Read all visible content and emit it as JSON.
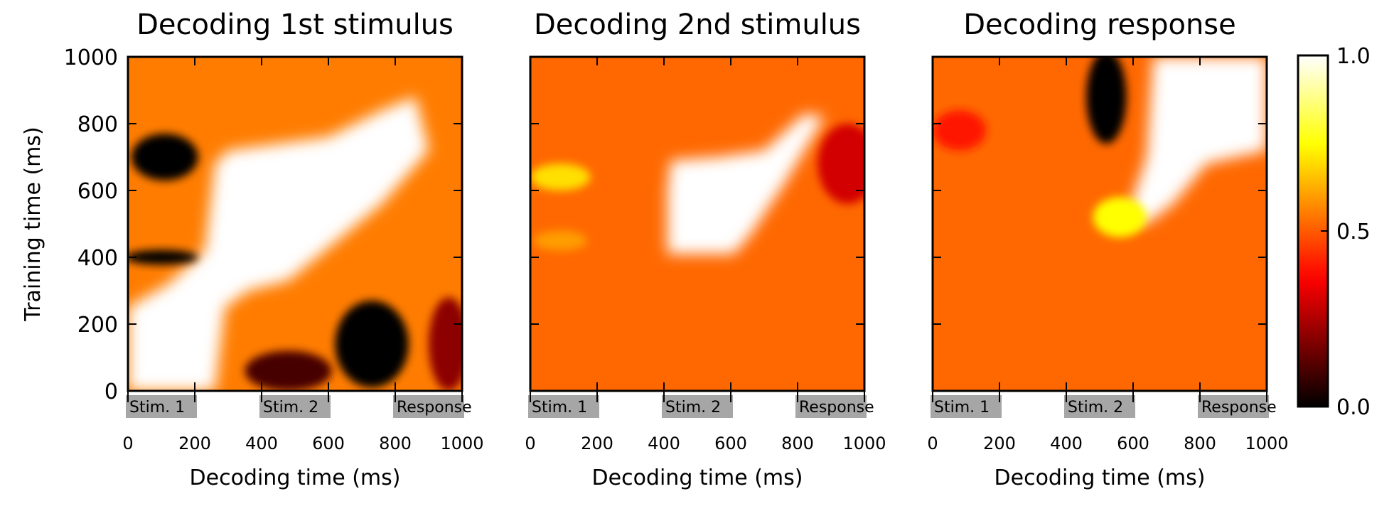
{
  "chart_data": [
    {
      "type": "heatmap",
      "title": "Decoding 1st stimulus",
      "xlabel": "Decoding time (ms)",
      "ylabel": "Training time (ms)",
      "xlim": [
        0,
        1000
      ],
      "ylim": [
        0,
        1000
      ],
      "xticks": [
        "0",
        "200",
        "400",
        "600",
        "800",
        "1000"
      ],
      "yticks": [
        "0",
        "200",
        "400",
        "600",
        "800",
        "1000"
      ],
      "background_value": 0.55,
      "regions": [
        {
          "shape": "poly",
          "value": 1.0,
          "points": [
            [
              0,
              0
            ],
            [
              260,
              0
            ],
            [
              290,
              250
            ],
            [
              360,
              300
            ],
            [
              480,
              330
            ],
            [
              760,
              560
            ],
            [
              900,
              720
            ],
            [
              860,
              880
            ],
            [
              760,
              840
            ],
            [
              600,
              760
            ],
            [
              300,
              720
            ],
            [
              260,
              680
            ],
            [
              230,
              420
            ],
            [
              120,
              320
            ],
            [
              0,
              250
            ]
          ]
        },
        {
          "shape": "blob",
          "value": 0.0,
          "cx": 110,
          "cy": 700,
          "rx": 100,
          "ry": 70
        },
        {
          "shape": "blob",
          "value": 0.0,
          "cx": 100,
          "cy": 400,
          "rx": 110,
          "ry": 22
        },
        {
          "shape": "blob",
          "value": 0.0,
          "cx": 730,
          "cy": 140,
          "rx": 110,
          "ry": 130
        },
        {
          "shape": "blob",
          "value": 0.1,
          "cx": 480,
          "cy": 60,
          "rx": 130,
          "ry": 60
        },
        {
          "shape": "blob",
          "value": 0.2,
          "cx": 960,
          "cy": 140,
          "rx": 60,
          "ry": 140
        }
      ]
    },
    {
      "type": "heatmap",
      "title": "Decoding 2nd stimulus",
      "xlabel": "Decoding time (ms)",
      "xlim": [
        0,
        1000
      ],
      "ylim": [
        0,
        1000
      ],
      "xticks": [
        "0",
        "200",
        "400",
        "600",
        "800",
        "1000"
      ],
      "background_value": 0.52,
      "regions": [
        {
          "shape": "poly",
          "value": 1.0,
          "points": [
            [
              410,
              410
            ],
            [
              610,
              410
            ],
            [
              660,
              470
            ],
            [
              760,
              620
            ],
            [
              880,
              820
            ],
            [
              820,
              830
            ],
            [
              700,
              720
            ],
            [
              560,
              700
            ],
            [
              420,
              690
            ],
            [
              410,
              600
            ]
          ]
        },
        {
          "shape": "blob",
          "value": 0.3,
          "cx": 950,
          "cy": 680,
          "rx": 90,
          "ry": 120
        },
        {
          "shape": "blob",
          "value": 0.7,
          "cx": 90,
          "cy": 640,
          "rx": 90,
          "ry": 40
        },
        {
          "shape": "blob",
          "value": 0.6,
          "cx": 90,
          "cy": 450,
          "rx": 80,
          "ry": 30
        }
      ]
    },
    {
      "type": "heatmap",
      "title": "Decoding response",
      "xlabel": "Decoding time (ms)",
      "xlim": [
        0,
        1000
      ],
      "ylim": [
        0,
        1000
      ],
      "xticks": [
        "0",
        "200",
        "400",
        "600",
        "800",
        "1000"
      ],
      "background_value": 0.52,
      "regions": [
        {
          "shape": "poly",
          "value": 1.0,
          "points": [
            [
              660,
              1000
            ],
            [
              1000,
              1000
            ],
            [
              1000,
              720
            ],
            [
              820,
              680
            ],
            [
              720,
              560
            ],
            [
              640,
              500
            ],
            [
              580,
              520
            ],
            [
              640,
              700
            ]
          ]
        },
        {
          "shape": "blob",
          "value": 0.0,
          "cx": 520,
          "cy": 880,
          "rx": 60,
          "ry": 140
        },
        {
          "shape": "blob",
          "value": 0.75,
          "cx": 560,
          "cy": 520,
          "rx": 80,
          "ry": 60
        },
        {
          "shape": "blob",
          "value": 0.4,
          "cx": 80,
          "cy": 780,
          "rx": 80,
          "ry": 60
        }
      ]
    }
  ],
  "events": [
    {
      "label": "Stim. 1",
      "start": 0,
      "end": 200
    },
    {
      "label": "Stim. 2",
      "start": 400,
      "end": 600
    },
    {
      "label": "Response",
      "start": 800,
      "end": 1000
    }
  ],
  "colorbar": {
    "colormap": "hot",
    "range": [
      0.0,
      1.0
    ],
    "tick_labels": [
      "1.0",
      "0.5",
      "0.0"
    ],
    "tick_values": [
      1.0,
      0.5,
      0.0
    ]
  }
}
